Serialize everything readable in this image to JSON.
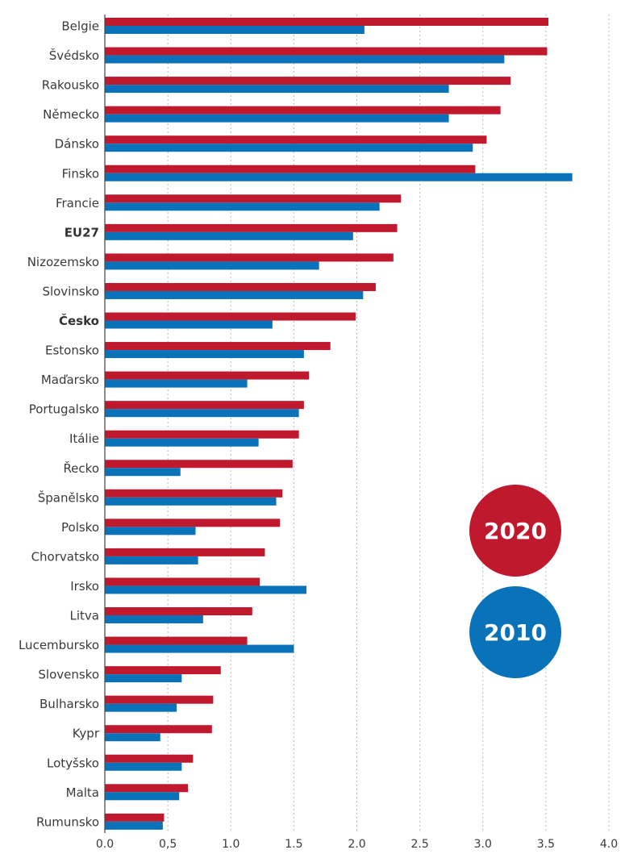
{
  "chart_data": {
    "type": "bar",
    "orientation": "horizontal",
    "categories": [
      "Belgie",
      "Švédsko",
      "Rakousko",
      "Německo",
      "Dánsko",
      "Finsko",
      "Francie",
      "EU27",
      "Nizozemsko",
      "Slovinsko",
      "Česko",
      "Estonsko",
      "Maďarsko",
      "Portugalsko",
      "Itálie",
      "Řecko",
      "Španělsko",
      "Polsko",
      "Chorvatsko",
      "Irsko",
      "Litva",
      "Lucembursko",
      "Slovensko",
      "Bulharsko",
      "Kypr",
      "Lotyšsko",
      "Malta",
      "Rumunsko"
    ],
    "highlighted_categories": [
      "EU27",
      "Česko"
    ],
    "series": [
      {
        "name": "2020",
        "color": "#c0182d",
        "values": [
          3.52,
          3.51,
          3.22,
          3.14,
          3.03,
          2.94,
          2.35,
          2.32,
          2.29,
          2.15,
          1.99,
          1.79,
          1.62,
          1.58,
          1.54,
          1.49,
          1.41,
          1.39,
          1.27,
          1.23,
          1.17,
          1.13,
          0.92,
          0.86,
          0.85,
          0.7,
          0.66,
          0.47
        ]
      },
      {
        "name": "2010",
        "color": "#0a72b9",
        "values": [
          2.06,
          3.17,
          2.73,
          2.73,
          2.92,
          3.71,
          2.18,
          1.97,
          1.7,
          2.05,
          1.33,
          1.58,
          1.13,
          1.54,
          1.22,
          0.6,
          1.36,
          0.72,
          0.74,
          1.6,
          0.78,
          1.5,
          0.61,
          0.57,
          0.44,
          0.61,
          0.59,
          0.46
        ]
      }
    ],
    "x_ticks": [
      "0.0",
      "0,5",
      "1.0",
      "1.5",
      "2.0",
      "2.5",
      "3.0",
      "3.5",
      "4.0"
    ],
    "xlim": [
      0,
      4.0
    ],
    "grid": "vertical dotted",
    "legend": "lower-right, circular badges"
  }
}
